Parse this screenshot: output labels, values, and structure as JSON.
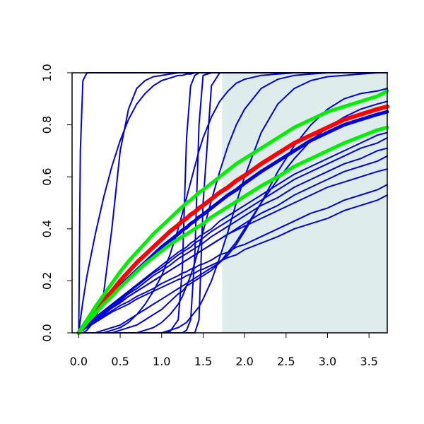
{
  "chart_data": {
    "type": "line",
    "title": "",
    "xlabel": "",
    "ylabel": "",
    "xlim": [
      -0.08,
      3.72
    ],
    "ylim": [
      0,
      1
    ],
    "x_ticks": [
      0.0,
      0.5,
      1.0,
      1.5,
      2.0,
      2.5,
      3.0,
      3.5
    ],
    "x_tick_labels": [
      "0.0",
      "0.5",
      "1.0",
      "1.5",
      "2.0",
      "2.5",
      "3.0",
      "3.5"
    ],
    "y_ticks": [
      0.0,
      0.2,
      0.4,
      0.6,
      0.8,
      1.0
    ],
    "y_tick_labels": [
      "0.0",
      "0.2",
      "0.4",
      "0.6",
      "0.8",
      "1.0"
    ],
    "shaded_region": {
      "x_from": 1.73,
      "x_to": 3.72,
      "color": "#dfecec"
    },
    "colors": {
      "blue": "#0000dd",
      "red": "#ff0000",
      "green": "#00ee00"
    },
    "grid": false,
    "legend": "none",
    "x_samples": [
      0.0,
      0.02,
      0.05,
      0.1,
      0.2,
      0.3,
      0.4,
      0.5,
      0.6,
      0.7,
      0.8,
      0.9,
      1.0,
      1.1,
      1.2,
      1.25,
      1.3,
      1.35,
      1.4,
      1.45,
      1.5,
      1.6,
      1.7,
      1.8,
      1.9,
      2.0,
      2.2,
      2.4,
      2.6,
      2.8,
      3.0,
      3.2,
      3.4,
      3.6,
      3.72
    ],
    "series": [
      {
        "color": "blue",
        "width": 2,
        "values": [
          0,
          0.7,
          0.97,
          1,
          1,
          1,
          1,
          1,
          1,
          1,
          1,
          1,
          1,
          1,
          1,
          1,
          1,
          1,
          1,
          1,
          1,
          1,
          1,
          1,
          1,
          1,
          1,
          1,
          1,
          1,
          1,
          1,
          1,
          1,
          1
        ]
      },
      {
        "color": "blue",
        "width": 2,
        "values": [
          0,
          0.0,
          0.0,
          0.01,
          0.05,
          0.15,
          0.4,
          0.7,
          0.86,
          0.94,
          0.97,
          0.985,
          0.99,
          0.995,
          1,
          1,
          1,
          1,
          1,
          1,
          1,
          1,
          1,
          1,
          1,
          1,
          1,
          1,
          1,
          1,
          1,
          1,
          1,
          1,
          1
        ]
      },
      {
        "color": "blue",
        "width": 2,
        "values": [
          0,
          0.05,
          0.12,
          0.22,
          0.38,
          0.52,
          0.64,
          0.74,
          0.82,
          0.88,
          0.92,
          0.95,
          0.97,
          0.98,
          0.99,
          0.99,
          0.995,
          0.995,
          1,
          1,
          1,
          1,
          1,
          1,
          1,
          1,
          1,
          1,
          1,
          1,
          1,
          1,
          1,
          1,
          1
        ]
      },
      {
        "color": "blue",
        "width": 2,
        "values": [
          0,
          0,
          0,
          0,
          0,
          0,
          0,
          0,
          0,
          0,
          0,
          0,
          0.0,
          0.005,
          0.05,
          0.25,
          0.75,
          0.95,
          0.99,
          1,
          1,
          1,
          1,
          1,
          1,
          1,
          1,
          1,
          1,
          1,
          1,
          1,
          1,
          1,
          1
        ]
      },
      {
        "color": "blue",
        "width": 2,
        "values": [
          0,
          0,
          0,
          0,
          0,
          0,
          0,
          0,
          0,
          0,
          0,
          0,
          0,
          0,
          0,
          0.0,
          0.01,
          0.05,
          0.3,
          0.8,
          0.99,
          1,
          1,
          1,
          1,
          1,
          1,
          1,
          1,
          1,
          1,
          1,
          1,
          1,
          1
        ]
      },
      {
        "color": "blue",
        "width": 2,
        "values": [
          0,
          0,
          0,
          0,
          0,
          0,
          0,
          0,
          0,
          0,
          0,
          0,
          0,
          0,
          0,
          0,
          0,
          0,
          0.0,
          0.05,
          0.5,
          0.95,
          1,
          1,
          1,
          1,
          1,
          1,
          1,
          1,
          1,
          1,
          1,
          1,
          1
        ]
      },
      {
        "color": "blue",
        "width": 2,
        "values": [
          0,
          0,
          0,
          0,
          0,
          0.0,
          0.01,
          0.02,
          0.04,
          0.07,
          0.11,
          0.16,
          0.22,
          0.3,
          0.4,
          0.46,
          0.52,
          0.58,
          0.64,
          0.7,
          0.75,
          0.83,
          0.89,
          0.93,
          0.96,
          0.975,
          0.99,
          0.995,
          1,
          1,
          1,
          1,
          1,
          1,
          1
        ]
      },
      {
        "color": "blue",
        "width": 2,
        "values": [
          0,
          0,
          0,
          0,
          0,
          0,
          0,
          0,
          0.0,
          0.0,
          0.01,
          0.02,
          0.04,
          0.07,
          0.11,
          0.14,
          0.18,
          0.22,
          0.27,
          0.33,
          0.39,
          0.51,
          0.62,
          0.72,
          0.8,
          0.86,
          0.94,
          0.975,
          0.99,
          0.995,
          1,
          1,
          1,
          1,
          1
        ]
      },
      {
        "color": "blue",
        "width": 2,
        "values": [
          0,
          0,
          0,
          0,
          0,
          0,
          0,
          0,
          0,
          0,
          0,
          0.0,
          0.0,
          0.01,
          0.02,
          0.03,
          0.04,
          0.06,
          0.08,
          0.1,
          0.13,
          0.2,
          0.29,
          0.39,
          0.5,
          0.6,
          0.77,
          0.88,
          0.94,
          0.97,
          0.985,
          0.99,
          0.995,
          1,
          1
        ]
      },
      {
        "color": "blue",
        "width": 2,
        "values": [
          0,
          0,
          0,
          0,
          0.0,
          0.01,
          0.02,
          0.03,
          0.05,
          0.07,
          0.09,
          0.11,
          0.13,
          0.15,
          0.17,
          0.18,
          0.19,
          0.2,
          0.21,
          0.22,
          0.23,
          0.25,
          0.27,
          0.3,
          0.34,
          0.39,
          0.5,
          0.62,
          0.72,
          0.8,
          0.86,
          0.9,
          0.92,
          0.93,
          0.94
        ]
      },
      {
        "color": "blue",
        "width": 2,
        "values": [
          0,
          0,
          0,
          0,
          0,
          0,
          0.0,
          0.01,
          0.02,
          0.03,
          0.05,
          0.07,
          0.09,
          0.12,
          0.15,
          0.16,
          0.18,
          0.19,
          0.2,
          0.21,
          0.22,
          0.24,
          0.27,
          0.31,
          0.35,
          0.4,
          0.5,
          0.59,
          0.67,
          0.74,
          0.79,
          0.83,
          0.86,
          0.88,
          0.89
        ]
      },
      {
        "color": "blue",
        "width": 2,
        "values": [
          0,
          0.01,
          0.015,
          0.03,
          0.06,
          0.085,
          0.11,
          0.135,
          0.16,
          0.185,
          0.21,
          0.235,
          0.26,
          0.285,
          0.31,
          0.32,
          0.33,
          0.345,
          0.355,
          0.37,
          0.38,
          0.4,
          0.43,
          0.45,
          0.47,
          0.49,
          0.53,
          0.57,
          0.61,
          0.64,
          0.67,
          0.7,
          0.73,
          0.76,
          0.77
        ]
      },
      {
        "color": "blue",
        "width": 2,
        "values": [
          0,
          0.01,
          0.015,
          0.03,
          0.06,
          0.08,
          0.105,
          0.13,
          0.155,
          0.18,
          0.205,
          0.23,
          0.25,
          0.275,
          0.3,
          0.31,
          0.32,
          0.33,
          0.345,
          0.355,
          0.365,
          0.39,
          0.41,
          0.43,
          0.45,
          0.47,
          0.51,
          0.55,
          0.59,
          0.62,
          0.65,
          0.68,
          0.71,
          0.73,
          0.75
        ]
      },
      {
        "color": "blue",
        "width": 2,
        "values": [
          0,
          0.01,
          0.015,
          0.03,
          0.055,
          0.08,
          0.1,
          0.125,
          0.15,
          0.17,
          0.195,
          0.22,
          0.24,
          0.26,
          0.285,
          0.295,
          0.305,
          0.315,
          0.325,
          0.335,
          0.345,
          0.37,
          0.39,
          0.41,
          0.43,
          0.45,
          0.49,
          0.52,
          0.56,
          0.59,
          0.62,
          0.65,
          0.67,
          0.7,
          0.71
        ]
      },
      {
        "color": "blue",
        "width": 2,
        "values": [
          0,
          0.005,
          0.015,
          0.025,
          0.05,
          0.075,
          0.1,
          0.12,
          0.14,
          0.16,
          0.18,
          0.2,
          0.22,
          0.24,
          0.26,
          0.27,
          0.28,
          0.29,
          0.3,
          0.31,
          0.32,
          0.34,
          0.36,
          0.38,
          0.4,
          0.42,
          0.46,
          0.49,
          0.53,
          0.56,
          0.59,
          0.62,
          0.64,
          0.66,
          0.68
        ]
      },
      {
        "color": "blue",
        "width": 2,
        "values": [
          0,
          0.005,
          0.01,
          0.025,
          0.045,
          0.065,
          0.085,
          0.105,
          0.12,
          0.14,
          0.155,
          0.17,
          0.19,
          0.205,
          0.22,
          0.23,
          0.235,
          0.245,
          0.25,
          0.26,
          0.265,
          0.28,
          0.3,
          0.31,
          0.33,
          0.34,
          0.37,
          0.4,
          0.43,
          0.46,
          0.48,
          0.51,
          0.53,
          0.55,
          0.57
        ]
      },
      {
        "color": "blue",
        "width": 2,
        "values": [
          0,
          0.005,
          0.01,
          0.02,
          0.04,
          0.06,
          0.08,
          0.095,
          0.11,
          0.13,
          0.145,
          0.16,
          0.175,
          0.19,
          0.205,
          0.21,
          0.22,
          0.225,
          0.23,
          0.24,
          0.245,
          0.26,
          0.275,
          0.29,
          0.3,
          0.32,
          0.345,
          0.37,
          0.4,
          0.42,
          0.44,
          0.47,
          0.49,
          0.51,
          0.53
        ]
      },
      {
        "color": "blue",
        "width": 2,
        "values": [
          0,
          0.005,
          0.012,
          0.025,
          0.05,
          0.07,
          0.095,
          0.115,
          0.14,
          0.16,
          0.18,
          0.2,
          0.22,
          0.24,
          0.26,
          0.27,
          0.28,
          0.29,
          0.3,
          0.31,
          0.32,
          0.34,
          0.36,
          0.38,
          0.395,
          0.41,
          0.44,
          0.47,
          0.5,
          0.53,
          0.56,
          0.58,
          0.6,
          0.62,
          0.63
        ]
      },
      {
        "color": "blue",
        "width": 5,
        "values": [
          0,
          0.008,
          0.02,
          0.04,
          0.075,
          0.11,
          0.145,
          0.18,
          0.21,
          0.24,
          0.27,
          0.3,
          0.33,
          0.355,
          0.38,
          0.395,
          0.405,
          0.42,
          0.43,
          0.445,
          0.455,
          0.48,
          0.505,
          0.53,
          0.55,
          0.575,
          0.62,
          0.66,
          0.7,
          0.74,
          0.77,
          0.8,
          0.82,
          0.84,
          0.85
        ]
      },
      {
        "color": "red",
        "width": 6,
        "values": [
          0,
          0.01,
          0.022,
          0.045,
          0.085,
          0.125,
          0.16,
          0.2,
          0.235,
          0.27,
          0.3,
          0.33,
          0.36,
          0.39,
          0.415,
          0.43,
          0.44,
          0.455,
          0.465,
          0.48,
          0.49,
          0.515,
          0.54,
          0.56,
          0.585,
          0.605,
          0.65,
          0.69,
          0.73,
          0.76,
          0.79,
          0.82,
          0.84,
          0.86,
          0.87
        ]
      },
      {
        "color": "green",
        "width": 5,
        "values": [
          0,
          0.011,
          0.026,
          0.05,
          0.1,
          0.145,
          0.19,
          0.235,
          0.275,
          0.31,
          0.345,
          0.38,
          0.41,
          0.44,
          0.47,
          0.485,
          0.5,
          0.51,
          0.525,
          0.54,
          0.55,
          0.575,
          0.6,
          0.625,
          0.65,
          0.67,
          0.71,
          0.75,
          0.79,
          0.82,
          0.85,
          0.87,
          0.89,
          0.91,
          0.93
        ]
      },
      {
        "color": "green",
        "width": 5,
        "values": [
          0,
          0.008,
          0.02,
          0.04,
          0.075,
          0.11,
          0.14,
          0.175,
          0.205,
          0.235,
          0.265,
          0.29,
          0.315,
          0.34,
          0.36,
          0.37,
          0.38,
          0.39,
          0.4,
          0.41,
          0.42,
          0.445,
          0.465,
          0.485,
          0.505,
          0.525,
          0.565,
          0.6,
          0.64,
          0.67,
          0.7,
          0.73,
          0.755,
          0.78,
          0.79
        ]
      }
    ]
  }
}
